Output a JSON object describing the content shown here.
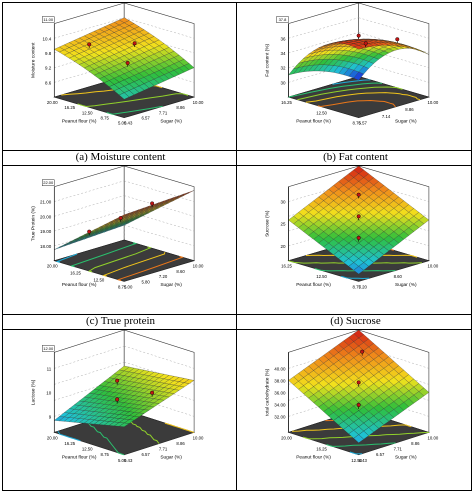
{
  "captions": [
    "(a) Moisture content",
    "(b) Fat content",
    "(c) True protein",
    "(d) Sucrose"
  ],
  "panels": [
    {
      "z_label": "Moisture content",
      "x_label": "Peanut flour (%)",
      "y_label": "Sugar (%)",
      "z_top": "11.00",
      "z_ticks": [
        "10.4",
        "9.8",
        "9.2",
        "8.6"
      ],
      "x_ticks": [
        "20.00",
        "16.25",
        "12.50",
        "8.75",
        "5.00"
      ],
      "y_ticks": [
        "10.00",
        "8.86",
        "7.71",
        "6.57",
        "5.43"
      ]
    },
    {
      "z_label": "Fat content (%)",
      "x_label": "Peanut flour (%)",
      "y_label": "Sugar (%)",
      "z_top": "37.8",
      "z_ticks": [
        "36",
        "34",
        "32",
        "30"
      ],
      "x_ticks": [
        "16.25",
        "12.50",
        "8.75"
      ],
      "y_ticks": [
        "10.00",
        "8.86",
        "7.14",
        "6.57"
      ]
    },
    {
      "z_label": "True Protein (%)",
      "x_label": "Peanut flour (%)",
      "y_label": "Sugar (%)",
      "z_top": "22.00",
      "z_ticks": [
        "21.00",
        "20.00",
        "19.00",
        "18.00"
      ],
      "x_ticks": [
        "20.00",
        "16.25",
        "12.50",
        "8.75"
      ],
      "y_ticks": [
        "10.00",
        "8.60",
        "7.20",
        "5.80",
        "5.00"
      ]
    },
    {
      "z_label": "Sucrose (%)",
      "x_label": "Peanut flour (%)",
      "y_label": "Sugar (%)",
      "z_top": "",
      "z_ticks": [
        "30",
        "25",
        "20"
      ],
      "x_ticks": [
        "16.25",
        "12.50",
        "8.75"
      ],
      "y_ticks": [
        "10.00",
        "8.60",
        "7.20"
      ]
    },
    {
      "z_label": "Lactose (%)",
      "x_label": "Peanut flour (%)",
      "y_label": "Sugar (%)",
      "z_top": "12.00",
      "z_ticks": [
        "11",
        "10",
        "9"
      ],
      "x_ticks": [
        "20.00",
        "16.25",
        "12.50",
        "8.75",
        "5.00"
      ],
      "y_ticks": [
        "10.00",
        "8.86",
        "7.71",
        "6.57",
        "5.43"
      ]
    },
    {
      "z_label": "total carbohydrate (%)",
      "x_label": "Peanut flour (%)",
      "y_label": "Sugar (%)",
      "z_top": "",
      "z_ticks": [
        "40.00",
        "38.00",
        "36.00",
        "34.00",
        "32.00"
      ],
      "x_ticks": [
        "20.00",
        "16.25",
        "12.50"
      ],
      "y_ticks": [
        "10.00",
        "8.86",
        "7.71",
        "6.57",
        "5.43"
      ]
    }
  ],
  "colors": {
    "red": "#d11a14",
    "orange": "#f08a1a",
    "yellow": "#f2e21c",
    "green": "#2fbf3a",
    "cyan": "#1fc2d6",
    "blue": "#1a35d8",
    "frame": "#000000"
  }
}
